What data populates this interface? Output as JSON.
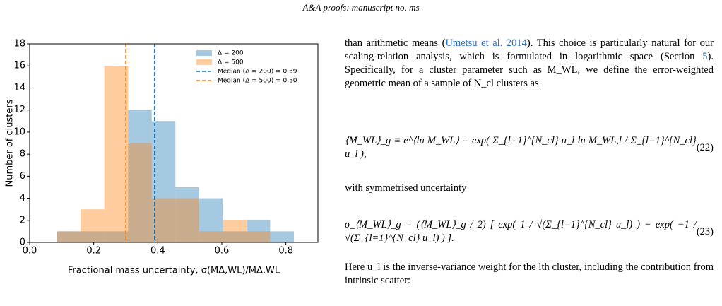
{
  "header": "A&A proofs: manuscript no. ms",
  "chart_data": {
    "type": "histogram",
    "xlabel": "Fractional mass uncertainty, σ(MΔ,WL)/MΔ,WL",
    "ylabel": "Number of clusters",
    "bins": [
      0.085,
      0.159,
      0.233,
      0.307,
      0.381,
      0.455,
      0.529,
      0.603,
      0.677,
      0.751,
      0.825
    ],
    "series": [
      {
        "name": "Δ = 200",
        "color": "#1f77b4",
        "values": [
          1,
          1,
          1,
          12,
          11,
          5,
          4,
          1,
          2,
          1
        ]
      },
      {
        "name": "Δ = 500",
        "color": "#ff7f0e",
        "values": [
          1,
          3,
          16,
          9,
          4,
          4,
          1,
          2,
          1,
          0
        ]
      }
    ],
    "medians": [
      {
        "value": 0.39,
        "label": "Median (Δ = 200) = 0.39",
        "color": "#1f77b4"
      },
      {
        "value": 0.3,
        "label": "Median (Δ = 500) = 0.30",
        "color": "#ff7f0e"
      }
    ],
    "xlim": [
      0,
      0.9
    ],
    "xticks": [
      {
        "value": 0,
        "label": "0.0"
      },
      0.2,
      0.4,
      0.6,
      0.8
    ],
    "ylim": [
      0,
      18
    ],
    "yticks": [
      0,
      2,
      4,
      6,
      8,
      10,
      12,
      14,
      16,
      18
    ]
  },
  "paragraph_1": [
    "than arithmetic means (",
    "Umetsu et al. 2014",
    "). This choice is particularly natural for our scaling-relation analysis, which is formulated in logarithmic space (Section ",
    "5",
    "). Specifically, for a cluster parameter such as M_WL, we define the error-weighted geometric mean of a sample of N_cl clusters as"
  ],
  "equations": [
    {
      "body": "⟨M_WL⟩_g ≡ e^⟨ln M_WL⟩ = exp( Σ_{l=1}^{N_cl} u_l ln M_WL,l / Σ_{l=1}^{N_cl} u_l ),",
      "number": "(22)"
    },
    {
      "body": "σ_⟨M_WL⟩_g = (⟨M_WL⟩_g / 2) [ exp( 1 / √(Σ_{l=1}^{N_cl} u_l) ) − exp( −1 / √(Σ_{l=1}^{N_cl} u_l) ) ].",
      "number": "(23)"
    }
  ],
  "paragraph_2": "with symmetrised uncertainty",
  "paragraph_3": "Here u_l is the inverse-variance weight for the lth cluster, including the contribution from intrinsic scatter:"
}
